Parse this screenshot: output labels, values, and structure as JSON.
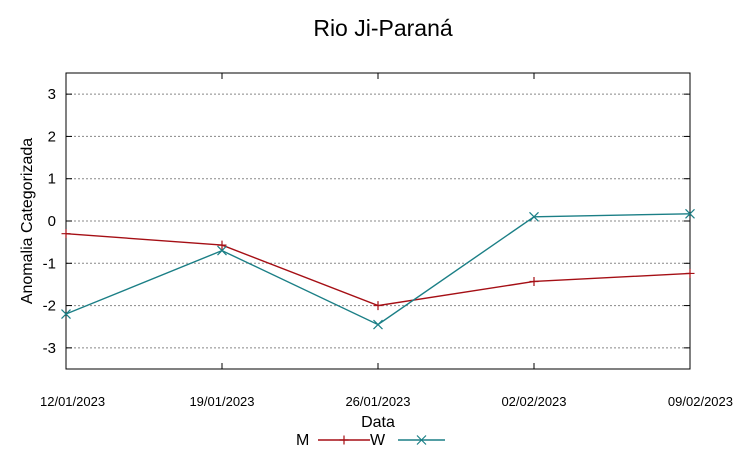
{
  "chart_data": {
    "type": "line",
    "title": "Rio Ji-Paraná",
    "xlabel": "Data",
    "ylabel": "Anomalia Categorizada",
    "ylim": [
      -3.5,
      3.5
    ],
    "yticks": [
      3,
      2,
      1,
      0,
      -1,
      -2,
      -3
    ],
    "ytick_labels": [
      "3",
      "2",
      "1",
      "0",
      "-1",
      "-2",
      "-3"
    ],
    "x": [
      "12/01/2023",
      "19/01/2023",
      "26/01/2023",
      "02/02/2023",
      "09/02/2023"
    ],
    "grid": true,
    "legend_position": "bottom",
    "series": [
      {
        "name": "M",
        "color": "#a50f15",
        "marker": "plus",
        "values": [
          -0.3,
          -0.57,
          -2.0,
          -1.43,
          -1.24
        ]
      },
      {
        "name": "W",
        "color": "#1b7f86",
        "marker": "cross",
        "values": [
          -2.2,
          -0.7,
          -2.45,
          0.1,
          0.17
        ]
      }
    ]
  }
}
